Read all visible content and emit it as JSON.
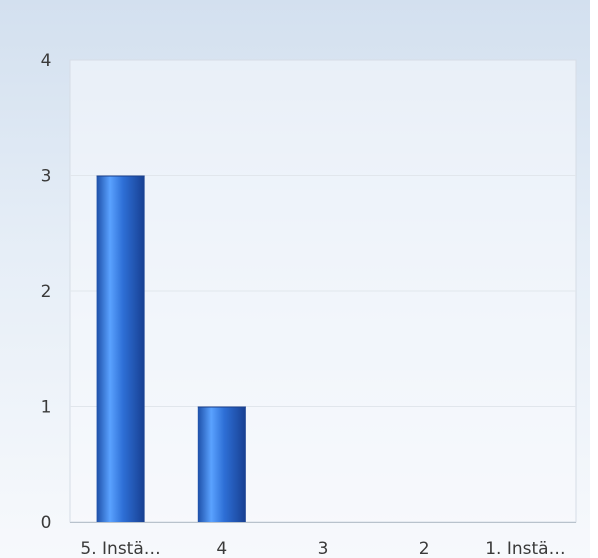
{
  "chart_data": {
    "type": "bar",
    "categories": [
      "5. Instä…",
      "4",
      "3",
      "2",
      "1. Instä…"
    ],
    "values": [
      3,
      1,
      0,
      0,
      0
    ],
    "ylim": [
      0,
      4
    ],
    "yticks": [
      "0",
      "1",
      "2",
      "3",
      "4"
    ],
    "grid": true,
    "bar_color": "#2f6fd4",
    "title": "",
    "xlabel": "",
    "ylabel": ""
  }
}
